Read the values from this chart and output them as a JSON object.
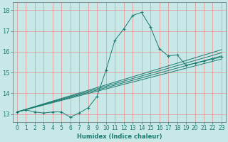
{
  "xlabel": "Humidex (Indice chaleur)",
  "ylabel": "",
  "bg_color": "#c8e8e8",
  "line_color": "#1a7a6e",
  "grid_color": "#e89090",
  "xlim": [
    -0.5,
    23.5
  ],
  "ylim": [
    12.6,
    18.4
  ],
  "xticks": [
    0,
    1,
    2,
    3,
    4,
    5,
    6,
    7,
    8,
    9,
    10,
    11,
    12,
    13,
    14,
    15,
    16,
    17,
    18,
    19,
    20,
    21,
    22,
    23
  ],
  "yticks": [
    13,
    14,
    15,
    16,
    17,
    18
  ],
  "main_line_x": [
    0,
    1,
    2,
    3,
    4,
    5,
    6,
    7,
    8,
    9,
    10,
    11,
    12,
    13,
    14,
    15,
    16,
    17,
    18,
    19,
    20,
    21,
    22,
    23
  ],
  "main_line_y": [
    13.1,
    13.2,
    13.1,
    13.05,
    13.1,
    13.1,
    12.85,
    13.05,
    13.3,
    13.85,
    15.1,
    16.55,
    17.1,
    17.75,
    17.9,
    17.2,
    16.15,
    15.8,
    15.85,
    15.35,
    15.45,
    15.55,
    15.65,
    15.75
  ],
  "trend_lines": [
    {
      "x": [
        0,
        23
      ],
      "y": [
        13.1,
        15.65
      ]
    },
    {
      "x": [
        0,
        23
      ],
      "y": [
        13.1,
        15.8
      ]
    },
    {
      "x": [
        0,
        23
      ],
      "y": [
        13.1,
        15.95
      ]
    },
    {
      "x": [
        0,
        23
      ],
      "y": [
        13.1,
        16.1
      ]
    }
  ]
}
